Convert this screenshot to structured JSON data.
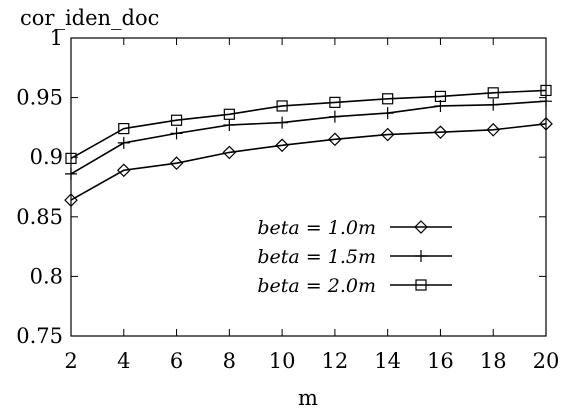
{
  "chart_data": {
    "type": "line",
    "title": "",
    "ylabel": "cor_iden_doc",
    "xlabel": "m",
    "xlim": [
      2,
      20
    ],
    "ylim": [
      0.75,
      1
    ],
    "x_ticks": [
      2,
      4,
      6,
      8,
      10,
      12,
      14,
      16,
      18,
      20
    ],
    "y_ticks": [
      "0.75",
      "0.8",
      "0.85",
      "0.9",
      "0.95",
      "1"
    ],
    "grid": false,
    "legend_position": "bottom-right",
    "x": [
      2,
      4,
      6,
      8,
      10,
      12,
      14,
      16,
      18,
      20
    ],
    "series": [
      {
        "name": "beta = 1.0m",
        "marker": "diamond",
        "values": [
          0.864,
          0.889,
          0.895,
          0.904,
          0.91,
          0.915,
          0.919,
          0.921,
          0.923,
          0.928
        ]
      },
      {
        "name": "beta = 1.5m",
        "marker": "plus",
        "values": [
          0.886,
          0.912,
          0.92,
          0.927,
          0.929,
          0.934,
          0.937,
          0.943,
          0.944,
          0.947
        ]
      },
      {
        "name": "beta = 2.0m",
        "marker": "square",
        "values": [
          0.899,
          0.924,
          0.931,
          0.936,
          0.943,
          0.946,
          0.949,
          0.951,
          0.954,
          0.956
        ]
      }
    ]
  }
}
